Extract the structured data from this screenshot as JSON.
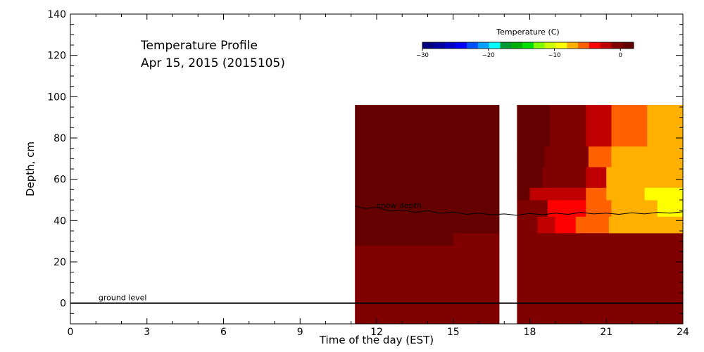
{
  "chart_data": {
    "type": "heatmap",
    "title": "Temperature Profile",
    "subtitle": "Apr 15, 2015 (2015105)",
    "xlabel": "Time of the day (EST)",
    "ylabel": "Depth, cm",
    "xlim": [
      0,
      24
    ],
    "ylim": [
      -10,
      140
    ],
    "x_ticks": [
      0,
      3,
      6,
      9,
      12,
      15,
      18,
      21,
      24
    ],
    "y_ticks": [
      0,
      20,
      40,
      60,
      80,
      100,
      120,
      140
    ],
    "grid": false,
    "colorbar": {
      "title": "Temperature (C)",
      "range": [
        -30,
        2
      ],
      "ticks": [
        {
          "value": -30,
          "label": "−30"
        },
        {
          "value": -20,
          "label": "−20"
        },
        {
          "value": -10,
          "label": "−10"
        },
        {
          "value": 0,
          "label": "0"
        }
      ],
      "colors": [
        "#000080",
        "#0000a0",
        "#0000c8",
        "#0000ff",
        "#0050ff",
        "#00a0ff",
        "#00ffff",
        "#009933",
        "#00b000",
        "#00e000",
        "#80ff00",
        "#d0ff00",
        "#ffff00",
        "#ffb000",
        "#ff6000",
        "#ff0000",
        "#c00000",
        "#800000",
        "#640000"
      ]
    },
    "annotations": [
      {
        "text": "ground level",
        "x": 1.1,
        "y": 1.5
      },
      {
        "text": "snow depth",
        "x": 12.0,
        "y": 46
      }
    ],
    "ground_level": 0,
    "data_gap": [
      16.8,
      17.5
    ],
    "cells": [
      {
        "x0": 11.15,
        "x1": 16.8,
        "y0": -10,
        "y1": 22,
        "temp": -0.3
      },
      {
        "x0": 11.15,
        "x1": 14.35,
        "y0": 22,
        "y1": 28,
        "temp": -0.6
      },
      {
        "x0": 14.35,
        "x1": 16.8,
        "y0": 22,
        "y1": 28,
        "temp": -0.3
      },
      {
        "x0": 11.15,
        "x1": 15.0,
        "y0": 28,
        "y1": 34,
        "temp": 1.8
      },
      {
        "x0": 15.0,
        "x1": 16.8,
        "y0": 28,
        "y1": 34,
        "temp": -0.8
      },
      {
        "x0": 11.15,
        "x1": 16.8,
        "y0": 34,
        "y1": 96,
        "temp": 1.8
      },
      {
        "x0": 17.5,
        "x1": 24.0,
        "y0": -10,
        "y1": 34,
        "temp": -0.3
      },
      {
        "x0": 17.5,
        "x1": 18.3,
        "y0": 34,
        "y1": 42,
        "temp": -0.3
      },
      {
        "x0": 18.3,
        "x1": 19.0,
        "y0": 34,
        "y1": 42,
        "temp": -2.0
      },
      {
        "x0": 19.0,
        "x1": 19.8,
        "y0": 34,
        "y1": 42,
        "temp": -3.5
      },
      {
        "x0": 19.8,
        "x1": 21.1,
        "y0": 34,
        "y1": 42,
        "temp": -4.8
      },
      {
        "x0": 21.1,
        "x1": 24.0,
        "y0": 34,
        "y1": 42,
        "temp": -7.5
      },
      {
        "x0": 17.5,
        "x1": 18.2,
        "y0": 42,
        "y1": 50,
        "temp": -0.3
      },
      {
        "x0": 18.2,
        "x1": 18.7,
        "y0": 42,
        "y1": 50,
        "temp": -1.0
      },
      {
        "x0": 18.7,
        "x1": 20.2,
        "y0": 42,
        "y1": 50,
        "temp": -4.5
      },
      {
        "x0": 20.2,
        "x1": 21.2,
        "y0": 42,
        "y1": 50,
        "temp": -5.0
      },
      {
        "x0": 21.2,
        "x1": 23.0,
        "y0": 42,
        "y1": 50,
        "temp": -7.5
      },
      {
        "x0": 23.0,
        "x1": 24.0,
        "y0": 42,
        "y1": 50,
        "temp": -9.5
      },
      {
        "x0": 17.5,
        "x1": 18.0,
        "y0": 50,
        "y1": 56,
        "temp": 1.0
      },
      {
        "x0": 18.0,
        "x1": 19.0,
        "y0": 50,
        "y1": 56,
        "temp": -1.5
      },
      {
        "x0": 19.0,
        "x1": 20.2,
        "y0": 50,
        "y1": 56,
        "temp": -3.0
      },
      {
        "x0": 20.2,
        "x1": 21.0,
        "y0": 50,
        "y1": 56,
        "temp": -5.0
      },
      {
        "x0": 21.0,
        "x1": 22.5,
        "y0": 50,
        "y1": 56,
        "temp": -7.0
      },
      {
        "x0": 22.5,
        "x1": 24.0,
        "y0": 50,
        "y1": 56,
        "temp": -9.5
      },
      {
        "x0": 17.5,
        "x1": 18.5,
        "y0": 56,
        "y1": 66,
        "temp": 1.2
      },
      {
        "x0": 18.5,
        "x1": 20.2,
        "y0": 56,
        "y1": 66,
        "temp": -0.4
      },
      {
        "x0": 20.2,
        "x1": 21.0,
        "y0": 56,
        "y1": 66,
        "temp": -2.0
      },
      {
        "x0": 21.0,
        "x1": 22.5,
        "y0": 56,
        "y1": 66,
        "temp": -7.0
      },
      {
        "x0": 22.5,
        "x1": 24.0,
        "y0": 56,
        "y1": 66,
        "temp": -8.0
      },
      {
        "x0": 17.5,
        "x1": 18.6,
        "y0": 66,
        "y1": 76,
        "temp": 1.5
      },
      {
        "x0": 18.6,
        "x1": 20.3,
        "y0": 66,
        "y1": 76,
        "temp": -0.4
      },
      {
        "x0": 20.3,
        "x1": 21.2,
        "y0": 66,
        "y1": 76,
        "temp": -5.0
      },
      {
        "x0": 21.2,
        "x1": 22.8,
        "y0": 66,
        "y1": 76,
        "temp": -7.5
      },
      {
        "x0": 22.8,
        "x1": 24.0,
        "y0": 66,
        "y1": 76,
        "temp": -8.0
      },
      {
        "x0": 17.5,
        "x1": 18.8,
        "y0": 76,
        "y1": 96,
        "temp": 1.5
      },
      {
        "x0": 18.8,
        "x1": 20.2,
        "y0": 76,
        "y1": 96,
        "temp": -0.4
      },
      {
        "x0": 20.2,
        "x1": 21.2,
        "y0": 76,
        "y1": 96,
        "temp": -3.0
      },
      {
        "x0": 21.2,
        "x1": 22.6,
        "y0": 76,
        "y1": 96,
        "temp": -5.0
      },
      {
        "x0": 22.6,
        "x1": 24.0,
        "y0": 76,
        "y1": 96,
        "temp": -7.0
      }
    ],
    "snow_depth": [
      {
        "x": 11.15,
        "y": 47.0
      },
      {
        "x": 11.6,
        "y": 45.8
      },
      {
        "x": 12.0,
        "y": 46.5
      },
      {
        "x": 12.5,
        "y": 44.6
      },
      {
        "x": 13.0,
        "y": 45.2
      },
      {
        "x": 13.5,
        "y": 44.0
      },
      {
        "x": 14.0,
        "y": 44.8
      },
      {
        "x": 14.5,
        "y": 43.5
      },
      {
        "x": 15.0,
        "y": 44.2
      },
      {
        "x": 15.5,
        "y": 43.0
      },
      {
        "x": 16.0,
        "y": 43.6
      },
      {
        "x": 16.5,
        "y": 42.8
      },
      {
        "x": 17.0,
        "y": 43.2
      },
      {
        "x": 17.5,
        "y": 42.6
      },
      {
        "x": 18.0,
        "y": 43.5
      },
      {
        "x": 18.5,
        "y": 42.8
      },
      {
        "x": 19.0,
        "y": 43.6
      },
      {
        "x": 19.5,
        "y": 43.0
      },
      {
        "x": 20.0,
        "y": 44.0
      },
      {
        "x": 20.5,
        "y": 43.2
      },
      {
        "x": 21.0,
        "y": 43.6
      },
      {
        "x": 21.5,
        "y": 43.0
      },
      {
        "x": 22.0,
        "y": 43.8
      },
      {
        "x": 22.5,
        "y": 43.2
      },
      {
        "x": 23.0,
        "y": 44.0
      },
      {
        "x": 23.5,
        "y": 43.6
      },
      {
        "x": 24.0,
        "y": 44.3
      }
    ]
  }
}
